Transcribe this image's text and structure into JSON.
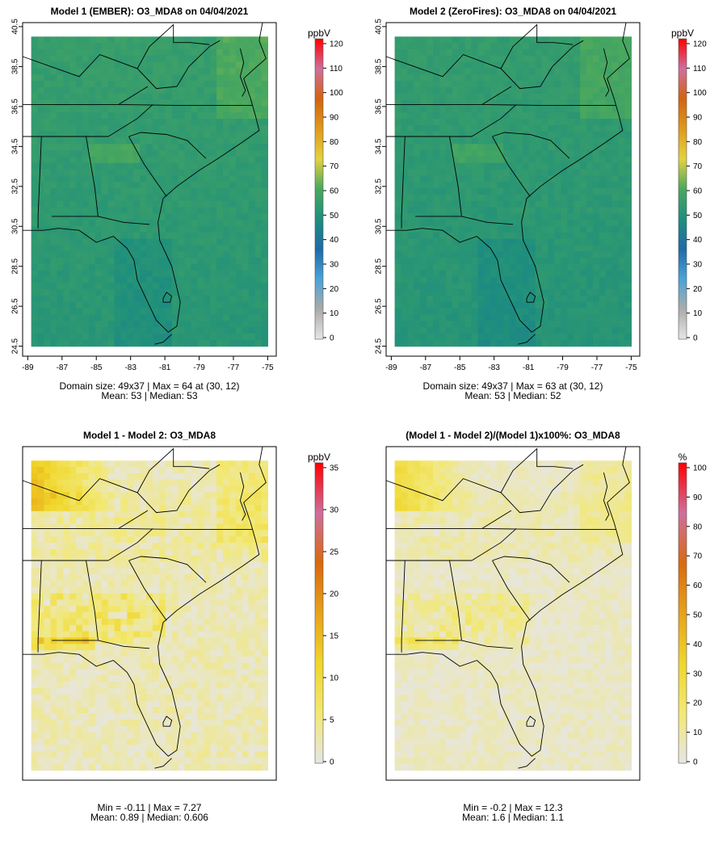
{
  "panels": [
    {
      "title": "Model 1 (EMBER): O3_MDA8 on 04/04/2021",
      "unit": "ppbV",
      "scale_ticks": [
        0,
        10,
        20,
        30,
        40,
        50,
        60,
        70,
        80,
        90,
        100,
        110,
        120
      ],
      "caption_line1": "Domain size: 49x37 | Max = 64 at (30, 12)",
      "caption_line2": "Mean: 53 |  Median: 53",
      "show_lat_axis": true,
      "show_lon_axis": true,
      "field": "model"
    },
    {
      "title": "Model 2 (ZeroFires): O3_MDA8 on 04/04/2021",
      "unit": "ppbV",
      "scale_ticks": [
        0,
        10,
        20,
        30,
        40,
        50,
        60,
        70,
        80,
        90,
        100,
        110,
        120
      ],
      "caption_line1": "Domain size: 49x37 | Max = 63 at (30, 12)",
      "caption_line2": "Mean: 53 |  Median: 52",
      "show_lat_axis": true,
      "show_lon_axis": true,
      "field": "model"
    },
    {
      "title": "Model 1 - Model 2: O3_MDA8",
      "unit": "ppbV",
      "scale_ticks": [
        0,
        5,
        10,
        15,
        20,
        25,
        30,
        35
      ],
      "caption_line1": "Min = -0.11 | Max = 7.27",
      "caption_line2": "Mean: 0.89 |  Median: 0.606",
      "show_lat_axis": false,
      "show_lon_axis": false,
      "field": "diff"
    },
    {
      "title": "(Model 1 - Model 2)/(Model 1)x100%: O3_MDA8",
      "unit": "%",
      "scale_ticks": [
        0,
        10,
        20,
        30,
        40,
        50,
        60,
        70,
        80,
        90,
        100
      ],
      "caption_line1": "Min = -0.2 | Max = 12.3",
      "caption_line2": "Mean: 1.6 |  Median: 1.1",
      "show_lat_axis": false,
      "show_lon_axis": false,
      "field": "pct"
    }
  ],
  "chart_data": [
    {
      "type": "heatmap",
      "title": "Model 1 (EMBER): O3_MDA8 on 04/04/2021",
      "units": "ppbV",
      "grid": "49x37",
      "x_ticks": [
        -89,
        -87,
        -85,
        -83,
        -81,
        -79,
        -77,
        -75
      ],
      "y_ticks": [
        24.5,
        26.5,
        28.5,
        30.5,
        32.5,
        34.5,
        36.5,
        38.5,
        40.5
      ],
      "color_range": [
        0,
        120
      ],
      "max": 64,
      "max_location": "(30, 12)",
      "mean": 53,
      "median": 53
    },
    {
      "type": "heatmap",
      "title": "Model 2 (ZeroFires): O3_MDA8 on 04/04/2021",
      "units": "ppbV",
      "grid": "49x37",
      "x_ticks": [
        -89,
        -87,
        -85,
        -83,
        -81,
        -79,
        -77,
        -75
      ],
      "y_ticks": [
        24.5,
        26.5,
        28.5,
        30.5,
        32.5,
        34.5,
        36.5,
        38.5,
        40.5
      ],
      "color_range": [
        0,
        120
      ],
      "max": 63,
      "max_location": "(30, 12)",
      "mean": 53,
      "median": 52
    },
    {
      "type": "heatmap",
      "title": "Model 1 - Model 2: O3_MDA8",
      "units": "ppbV",
      "color_range": [
        0,
        35
      ],
      "min": -0.11,
      "max": 7.27,
      "mean": 0.89,
      "median": 0.606
    },
    {
      "type": "heatmap",
      "title": "(Model 1 - Model 2)/(Model 1)x100%: O3_MDA8",
      "units": "%",
      "color_range": [
        0,
        100
      ],
      "min": -0.2,
      "max": 12.3,
      "mean": 1.6,
      "median": 1.1
    }
  ],
  "colors": {
    "background": "#ffffff",
    "frame": "#000000",
    "low": "#e6e6e6",
    "scale_stops": [
      "#e6e6e6",
      "#ababab",
      "#4aa3d8",
      "#1f6aa8",
      "#1e8f7d",
      "#4aa85e",
      "#e3d23f",
      "#e09a1c",
      "#d3630f",
      "#cf6f9d",
      "#ff0000"
    ],
    "diff_stops": [
      "#e6e6e6",
      "#f2e873",
      "#f0d62a",
      "#e8a21a",
      "#d9690f",
      "#cf6f9d",
      "#ff0000"
    ]
  }
}
